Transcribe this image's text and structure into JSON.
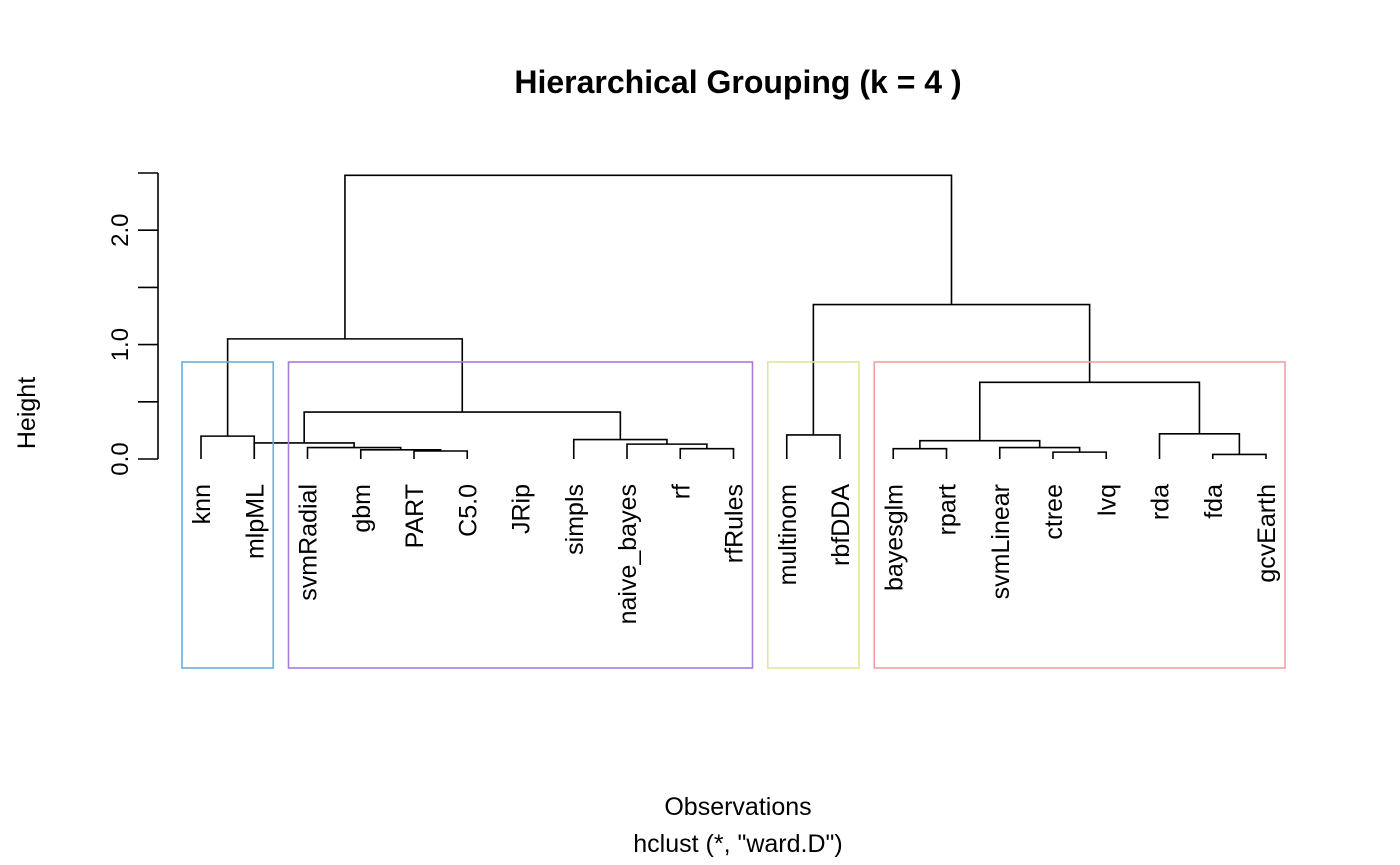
{
  "chart_data": {
    "type": "dendrogram",
    "title": "Hierarchical Grouping (k = 4 )",
    "xlabel": "Observations",
    "sublabel": "hclust (*, \"ward.D\")",
    "ylabel": "Height",
    "ylim": [
      0,
      2.5
    ],
    "yticks": [
      0,
      0.5,
      1.0,
      1.5,
      2.0,
      2.5
    ],
    "ytick_labels": [
      "0.0",
      "",
      "1.0",
      "",
      "2.0",
      ""
    ],
    "leaves": [
      "knn",
      "mlpML",
      "svmRadial",
      "gbm",
      "PART",
      "C5.0",
      "JRip",
      "simpls",
      "naive_bayes",
      "rf",
      "rfRules",
      "multinom",
      "rbfDDA",
      "bayesglm",
      "rpart",
      "svmLinear",
      "ctree",
      "lvq",
      "rda",
      "fda",
      "gcvEarth"
    ],
    "merges": [
      {
        "left": 4,
        "right": 5,
        "height": 0.07
      },
      {
        "left": 3,
        "right": -1,
        "height": 0.08
      },
      {
        "left": 2,
        "right": -2,
        "height": 0.1
      },
      {
        "left": 1,
        "right": -3,
        "height": 0.14
      },
      {
        "left": 9,
        "right": 10,
        "height": 0.09
      },
      {
        "left": 8,
        "right": -5,
        "height": 0.13
      },
      {
        "left": 7,
        "right": -6,
        "height": 0.17
      },
      {
        "left": -4,
        "right": -7,
        "height": 0.41
      },
      {
        "left": 0,
        "right": 1,
        "height": 0.2
      },
      {
        "left": -9,
        "right": -8,
        "height": 1.05
      },
      {
        "left": 11,
        "right": 12,
        "height": 0.21
      },
      {
        "left": 16,
        "right": 17,
        "height": 0.06
      },
      {
        "left": 15,
        "right": -12,
        "height": 0.1
      },
      {
        "left": 13,
        "right": 14,
        "height": 0.09
      },
      {
        "left": -14,
        "right": -13,
        "height": 0.16
      },
      {
        "left": 19,
        "right": 20,
        "height": 0.04
      },
      {
        "left": 18,
        "right": -16,
        "height": 0.22
      },
      {
        "left": -15,
        "right": -17,
        "height": 0.67
      },
      {
        "left": -11,
        "right": -18,
        "height": 1.35
      },
      {
        "left": -10,
        "right": -19,
        "height": 2.48
      }
    ],
    "clusters": [
      {
        "first": 0,
        "last": 1,
        "color": "#6aaee0"
      },
      {
        "first": 2,
        "last": 10,
        "color": "#a77be0"
      },
      {
        "first": 11,
        "last": 12,
        "color": "#dfe89a"
      },
      {
        "first": 13,
        "last": 20,
        "color": "#f4a0a0"
      }
    ]
  }
}
